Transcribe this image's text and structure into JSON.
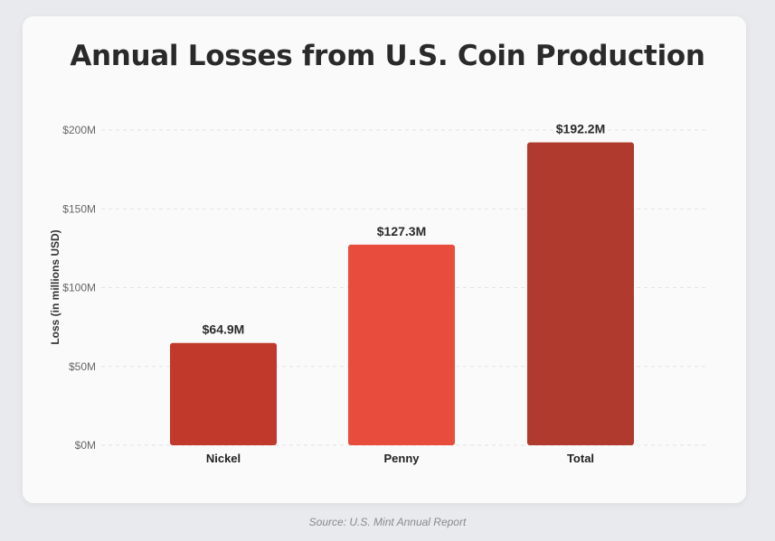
{
  "chart_data": {
    "type": "bar",
    "title": "Annual Losses from U.S. Coin Production",
    "ylabel": "Loss (in millions USD)",
    "xlabel": "",
    "categories": [
      "Nickel",
      "Penny",
      "Total"
    ],
    "values": [
      64.9,
      127.3,
      192.2
    ],
    "data_labels": [
      "$64.9M",
      "$127.3M",
      "$192.2M"
    ],
    "colors": [
      "#c0392b",
      "#e74c3c",
      "#b03a2e"
    ],
    "ylim": [
      0,
      200
    ],
    "yticks": [
      0,
      50,
      100,
      150,
      200
    ],
    "ytick_labels": [
      "$0M",
      "$50M",
      "$100M",
      "$150M",
      "$200M"
    ],
    "grid": "horizontal dashed",
    "legend": "none"
  },
  "source": "Source: U.S. Mint Annual Report"
}
